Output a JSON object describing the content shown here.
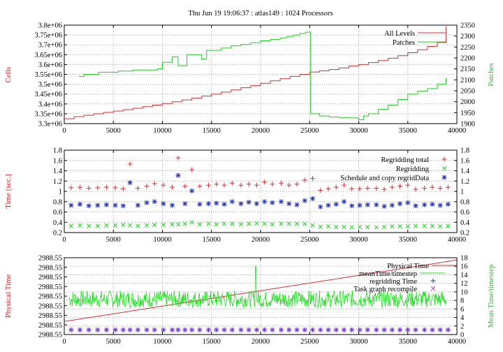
{
  "figure_title": "Thu Jun 19 19:06:37 : atlas149 : 1024 Processors",
  "colors": {
    "red": "#cc3333",
    "green": "#22dd22",
    "blue": "#2233aa",
    "magenta": "#aa33cc",
    "grid": "#999999"
  },
  "chart_data": [
    {
      "type": "line",
      "grid": true,
      "legend_position": "top-right",
      "x_ticks": [
        0,
        5000,
        10000,
        15000,
        20000,
        25000,
        30000,
        35000,
        40000
      ],
      "xlim": [
        0,
        40000
      ],
      "ylabel": "Cells",
      "y2label": "Patches",
      "ylim": [
        3300000,
        3800000
      ],
      "y2lim": [
        1900,
        2350
      ],
      "y_ticks": [
        "3.3e+06",
        "3.35e+06",
        "3.4e+06",
        "3.45e+06",
        "3.5e+06",
        "3.55e+06",
        "3.6e+06",
        "3.65e+06",
        "3.7e+06",
        "3.75e+06",
        "3.8e+06"
      ],
      "y2_ticks": [
        "1900",
        "1950",
        "2000",
        "2050",
        "2100",
        "2150",
        "2200",
        "2250",
        "2300",
        "2350"
      ],
      "series": [
        {
          "name": "All Levels",
          "axis": "y",
          "color": "#cc3333",
          "step": true,
          "x": [
            0,
            1000,
            2000,
            3000,
            4000,
            5000,
            6000,
            7000,
            8000,
            9000,
            10000,
            11000,
            12000,
            13000,
            14000,
            15000,
            16000,
            17000,
            18000,
            19000,
            20000,
            21000,
            22000,
            23000,
            24000,
            25000,
            25100,
            26000,
            27000,
            28000,
            29000,
            30000,
            31000,
            32000,
            33000,
            34000,
            35000,
            36000,
            37000,
            38000,
            38900
          ],
          "values": [
            3325000,
            3335000,
            3342000,
            3350000,
            3357000,
            3364000,
            3371000,
            3378000,
            3386000,
            3394000,
            3402000,
            3411000,
            3420000,
            3430000,
            3440000,
            3450000,
            3460000,
            3471000,
            3482000,
            3493000,
            3505000,
            3517000,
            3528000,
            3540000,
            3550000,
            3558000,
            3562000,
            3568000,
            3575000,
            3583000,
            3592000,
            3600000,
            3610000,
            3620000,
            3632000,
            3645000,
            3660000,
            3675000,
            3692000,
            3712000,
            3795000
          ]
        },
        {
          "name": "Patches",
          "axis": "y2",
          "color": "#22cc22",
          "step": true,
          "x": [
            1500,
            2000,
            3500,
            5500,
            7000,
            9500,
            10000,
            11000,
            11600,
            12500,
            14000,
            14500,
            16000,
            17000,
            18000,
            19000,
            20000,
            21000,
            22000,
            22700,
            23300,
            24000,
            24600,
            25100,
            26000,
            27000,
            28000,
            29000,
            30000,
            30500,
            31000,
            32000,
            33000,
            34000,
            35000,
            36000,
            37000,
            38000,
            38900
          ],
          "values": [
            2115,
            2125,
            2135,
            2140,
            2145,
            2150,
            2180,
            2205,
            2165,
            2215,
            2195,
            2235,
            2245,
            2255,
            2262,
            2270,
            2278,
            2285,
            2292,
            2298,
            2305,
            2312,
            2318,
            1945,
            1935,
            1930,
            1928,
            1926,
            1918,
            1935,
            1945,
            1965,
            1985,
            2010,
            2035,
            2048,
            2060,
            2080,
            2110
          ]
        }
      ]
    },
    {
      "type": "scatter",
      "grid": true,
      "legend_position": "top-right",
      "x_ticks": [
        0,
        5000,
        10000,
        15000,
        20000,
        25000,
        30000,
        35000,
        40000
      ],
      "xlim": [
        0,
        40000
      ],
      "ylabel": "Time [sec.]",
      "ylim": [
        0.2,
        1.8
      ],
      "y_ticks": [
        "0.2",
        "0.4",
        "0.6",
        "0.8",
        "1",
        "1.2",
        "1.4",
        "1.6",
        "1.8"
      ],
      "y2_ticks": [
        "0.2",
        "0.4",
        "0.6",
        "0.8",
        "1",
        "1.2",
        "1.4",
        "1.6",
        "1.8"
      ],
      "x": [
        700,
        1600,
        2500,
        3400,
        4300,
        5200,
        6000,
        6700,
        7500,
        8400,
        9200,
        10100,
        11000,
        11600,
        12300,
        13000,
        13800,
        14700,
        15500,
        16300,
        17100,
        18000,
        18800,
        19600,
        20400,
        21200,
        22100,
        22900,
        23700,
        24500,
        25300,
        26100,
        26900,
        27700,
        28500,
        29300,
        30100,
        30900,
        31800,
        32600,
        33400,
        34200,
        35000,
        35800,
        36700,
        37500,
        38300,
        39100
      ],
      "series": [
        {
          "name": "Regridding total",
          "marker": "+",
          "color": "#cc3333",
          "values": [
            1.07,
            1.08,
            1.06,
            1.07,
            1.08,
            1.07,
            1.05,
            1.53,
            1.06,
            1.1,
            1.15,
            1.12,
            1.08,
            1.65,
            1.1,
            1.42,
            1.1,
            1.12,
            1.14,
            1.12,
            1.16,
            1.12,
            1.14,
            1.12,
            1.18,
            1.14,
            1.16,
            1.12,
            1.14,
            1.22,
            1.25,
            1.02,
            1.05,
            1.08,
            1.12,
            1.05,
            1.05,
            1.06,
            1.06,
            1.04,
            1.08,
            1.1,
            1.12,
            1.04,
            1.06,
            1.08,
            1.06,
            1.08
          ]
        },
        {
          "name": "Regridding",
          "marker": "x",
          "color": "#22cc22",
          "values": [
            0.33,
            0.34,
            0.33,
            0.33,
            0.34,
            0.34,
            0.35,
            0.34,
            0.33,
            0.34,
            0.35,
            0.35,
            0.36,
            0.36,
            0.37,
            0.4,
            0.36,
            0.37,
            0.36,
            0.37,
            0.37,
            0.36,
            0.37,
            0.38,
            0.37,
            0.36,
            0.37,
            0.37,
            0.37,
            0.37,
            0.34,
            0.31,
            0.32,
            0.31,
            0.31,
            0.3,
            0.31,
            0.31,
            0.3,
            0.31,
            0.32,
            0.32,
            0.32,
            0.33,
            0.33,
            0.33,
            0.32,
            0.33
          ]
        },
        {
          "name": "Schedule and copy regridData",
          "marker": "*",
          "color": "#2233aa",
          "values": [
            0.73,
            0.75,
            0.72,
            0.73,
            0.74,
            0.73,
            0.72,
            1.17,
            0.73,
            0.78,
            0.8,
            0.76,
            0.73,
            1.31,
            0.76,
            1.01,
            0.75,
            0.76,
            0.77,
            0.75,
            0.8,
            0.76,
            0.79,
            0.76,
            0.8,
            0.78,
            0.8,
            0.76,
            0.74,
            0.82,
            0.86,
            0.7,
            0.73,
            0.75,
            0.8,
            0.72,
            0.73,
            0.74,
            0.74,
            0.71,
            0.73,
            0.76,
            0.78,
            0.72,
            0.74,
            0.75,
            0.73,
            0.75
          ]
        }
      ]
    },
    {
      "type": "line",
      "grid": true,
      "legend_position": "top-right",
      "x_ticks": [
        0,
        5000,
        10000,
        15000,
        20000,
        25000,
        30000,
        35000,
        40000
      ],
      "xlim": [
        0,
        40000
      ],
      "ylabel": "Physical Time",
      "y2label": "Mean Time/timestep",
      "y_ticks": [
        "2988.55",
        "2988.55",
        "2988.55",
        "2988.55",
        "2988.55",
        "2988.55",
        "2988.55",
        "2988.55",
        "2988.55"
      ],
      "y2lim": [
        0,
        18
      ],
      "y2_ticks": [
        "0",
        "2",
        "4",
        "6",
        "8",
        "10",
        "12",
        "14",
        "16",
        "18"
      ],
      "physical_time": {
        "name": "Physical Time",
        "color": "#cc3333",
        "x": [
          0,
          40000
        ],
        "fraction_of_y_range": [
          0.17,
          0.97
        ]
      },
      "mean_time_timestep": {
        "name": "meanTime/timestep",
        "color": "#22dd22",
        "baseline": 8.3,
        "range": [
          6.5,
          10.5
        ],
        "spike": {
          "x": 19500,
          "value": 16
        }
      },
      "scatter_series": [
        {
          "name": "regridding Time",
          "marker": "+",
          "color": "#2233aa",
          "values_y2": 1.1
        },
        {
          "name": "Task graph recompile",
          "marker": "x",
          "color": "#aa33cc",
          "values_y2": 1.1
        }
      ]
    }
  ]
}
